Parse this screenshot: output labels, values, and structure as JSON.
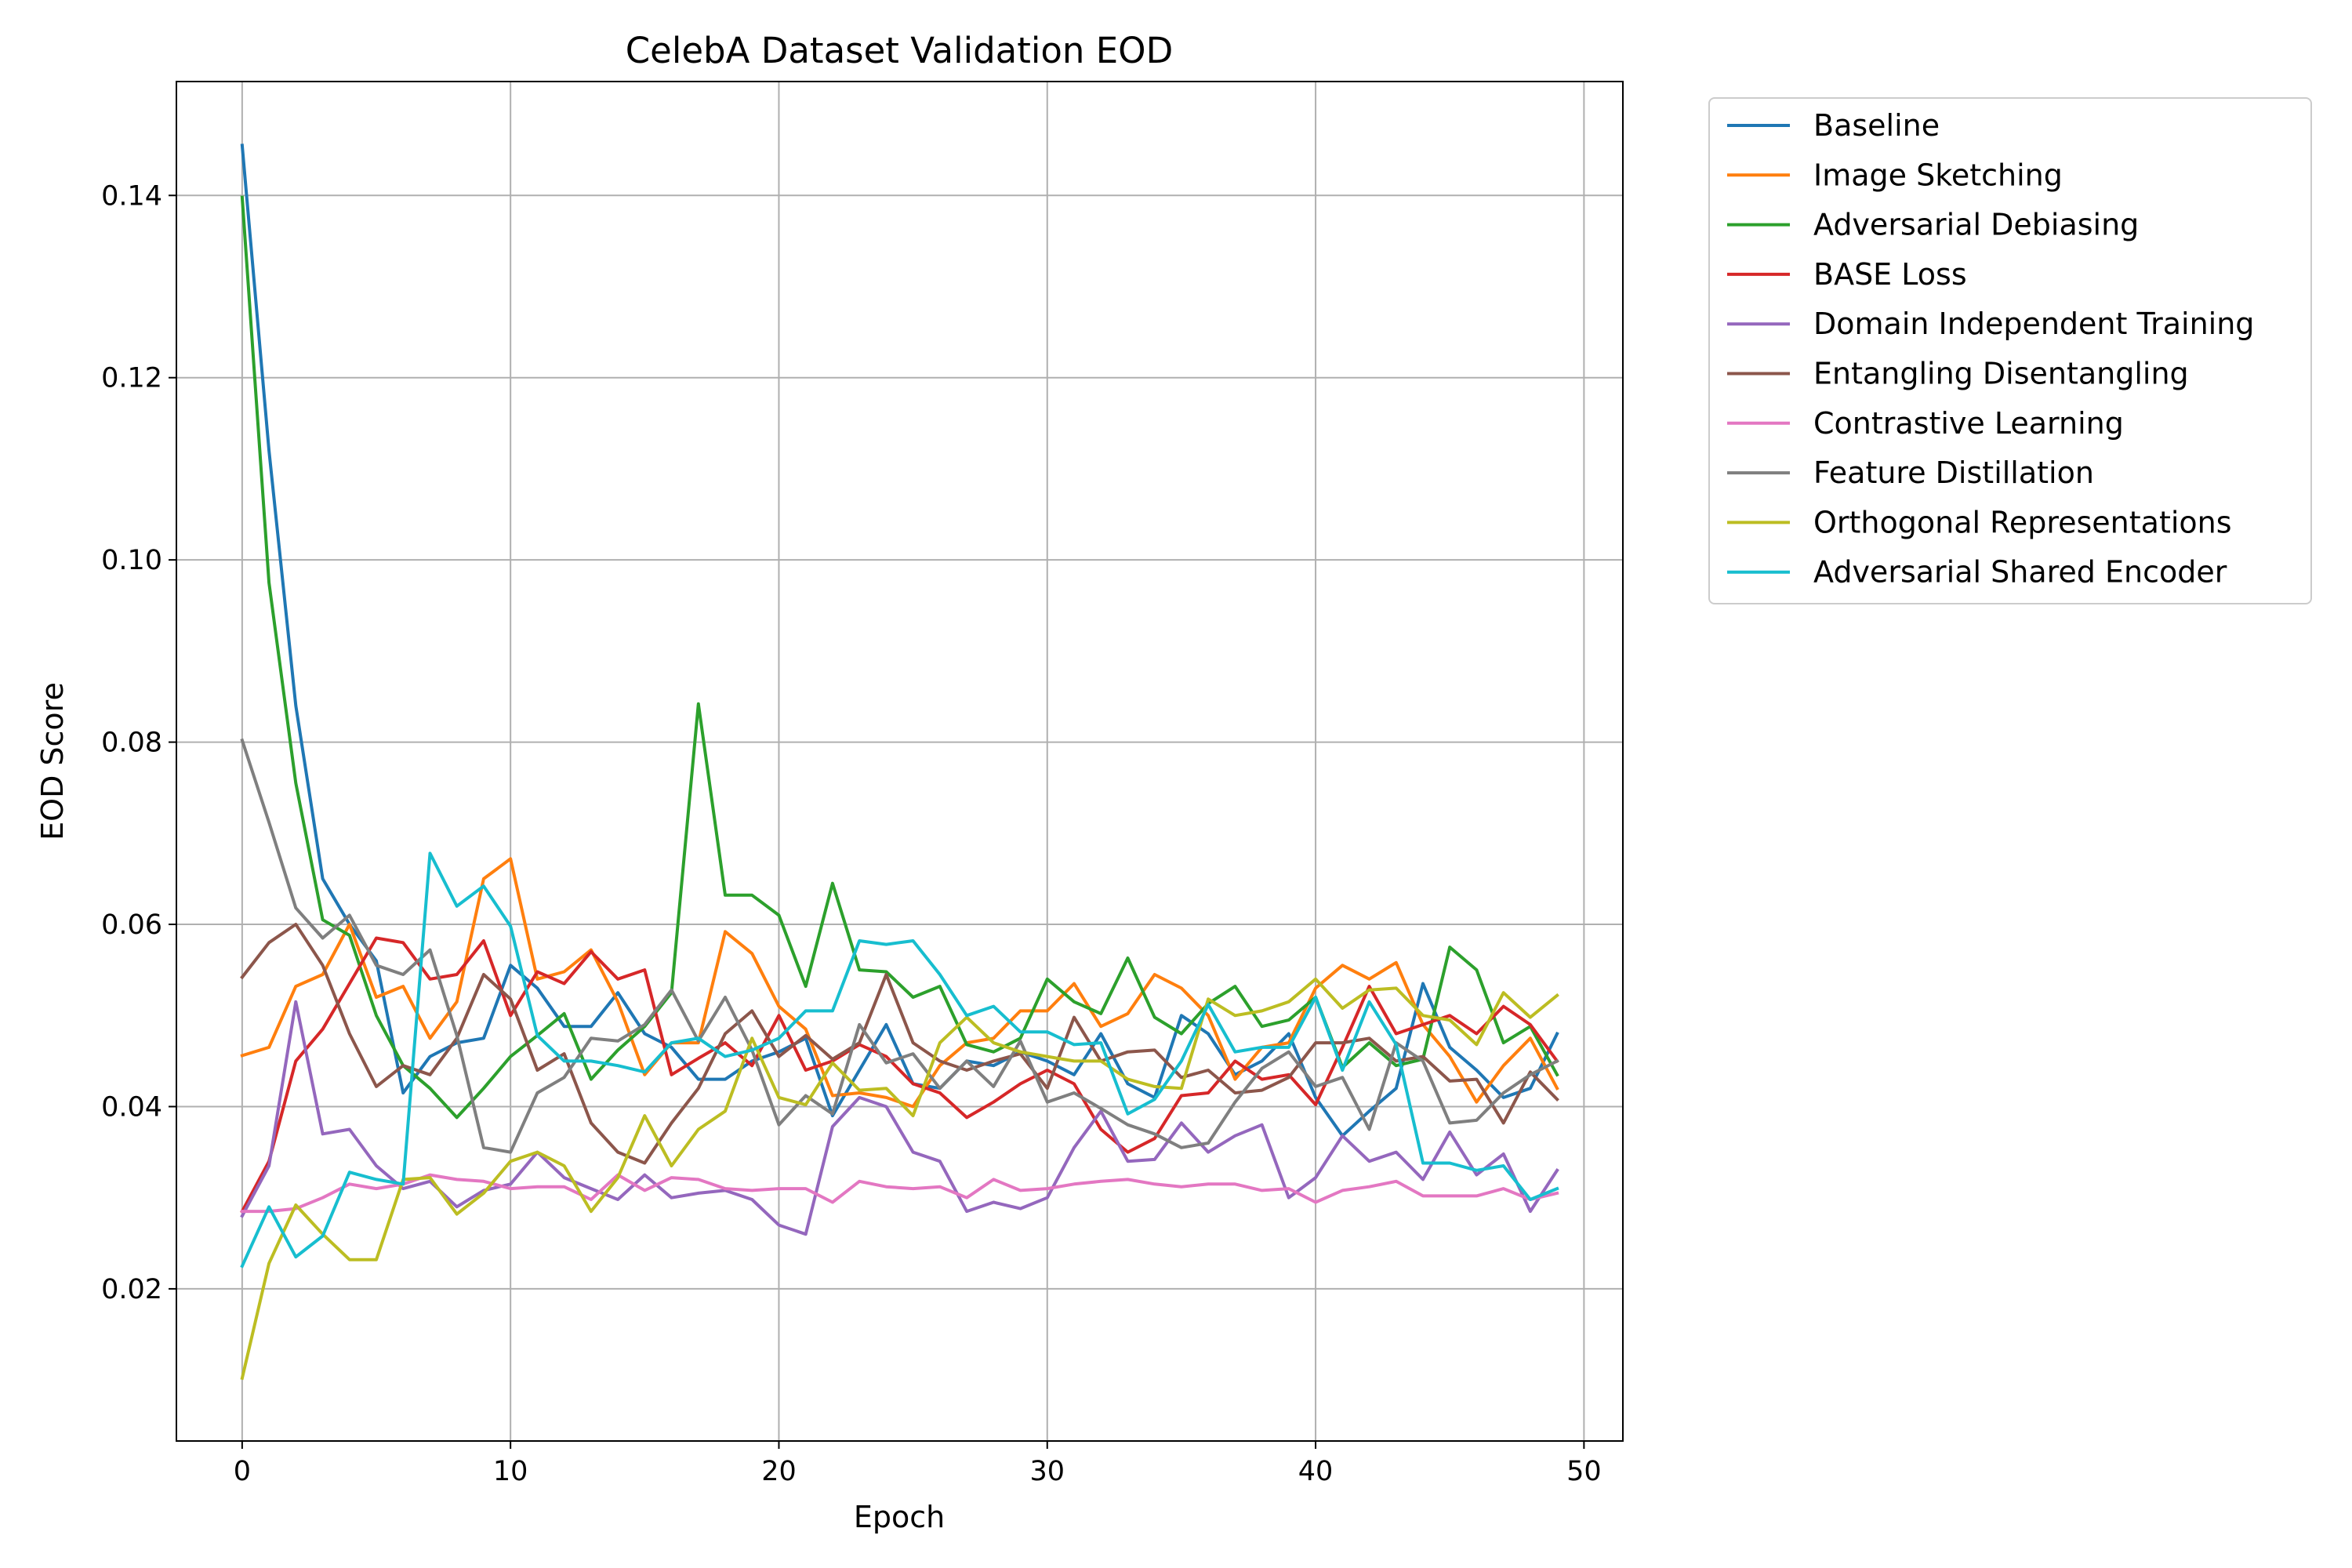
{
  "chart_data": {
    "type": "line",
    "title": "CelebA Dataset Validation EOD",
    "xlabel": "Epoch",
    "ylabel": "EOD Score",
    "xlim": [
      -2.45,
      51.45
    ],
    "ylim": [
      0.0033,
      0.1525
    ],
    "xticks": [
      0,
      10,
      20,
      30,
      40,
      50
    ],
    "xtick_labels": [
      "0",
      "10",
      "20",
      "30",
      "40",
      "50"
    ],
    "yticks": [
      0.02,
      0.04,
      0.06,
      0.08,
      0.1,
      0.12,
      0.14
    ],
    "ytick_labels": [
      "0.02",
      "0.04",
      "0.06",
      "0.08",
      "0.10",
      "0.12",
      "0.14"
    ],
    "grid": true,
    "legend_position": "outside-upper-right",
    "x": [
      0,
      1,
      2,
      3,
      4,
      5,
      6,
      7,
      8,
      9,
      10,
      11,
      12,
      13,
      14,
      15,
      16,
      17,
      18,
      19,
      20,
      21,
      22,
      23,
      24,
      25,
      26,
      27,
      28,
      29,
      30,
      31,
      32,
      33,
      34,
      35,
      36,
      37,
      38,
      39,
      40,
      41,
      42,
      43,
      44,
      45,
      46,
      47,
      48,
      49
    ],
    "series": [
      {
        "name": "Baseline",
        "color": "#1f77b4",
        "values": [
          0.1455,
          0.112,
          0.084,
          0.065,
          0.06,
          0.056,
          0.0415,
          0.0455,
          0.047,
          0.0475,
          0.0555,
          0.053,
          0.0488,
          0.0488,
          0.0525,
          0.048,
          0.0465,
          0.043,
          0.043,
          0.045,
          0.046,
          0.0475,
          0.039,
          0.044,
          0.049,
          0.0425,
          0.042,
          0.045,
          0.0445,
          0.046,
          0.045,
          0.0435,
          0.048,
          0.0425,
          0.041,
          0.05,
          0.048,
          0.0435,
          0.045,
          0.048,
          0.041,
          0.0368,
          0.0395,
          0.042,
          0.0535,
          0.0465,
          0.044,
          0.041,
          0.042,
          0.048
        ]
      },
      {
        "name": "Image Sketching",
        "color": "#ff7f0e",
        "values": [
          0.0456,
          0.0465,
          0.0532,
          0.0545,
          0.06,
          0.052,
          0.0532,
          0.0475,
          0.0515,
          0.065,
          0.0672,
          0.054,
          0.0548,
          0.0572,
          0.0515,
          0.0435,
          0.047,
          0.047,
          0.0592,
          0.0568,
          0.051,
          0.0485,
          0.0412,
          0.0415,
          0.041,
          0.04,
          0.0445,
          0.047,
          0.0475,
          0.0505,
          0.0505,
          0.0535,
          0.0488,
          0.0502,
          0.0545,
          0.053,
          0.05,
          0.043,
          0.0465,
          0.047,
          0.053,
          0.0555,
          0.054,
          0.0558,
          0.049,
          0.0455,
          0.0405,
          0.0445,
          0.0475,
          0.042
        ]
      },
      {
        "name": "Adversarial Debiasing",
        "color": "#2ca02c",
        "values": [
          0.1398,
          0.0975,
          0.0755,
          0.0605,
          0.0588,
          0.05,
          0.0445,
          0.042,
          0.0388,
          0.042,
          0.0455,
          0.0478,
          0.0502,
          0.043,
          0.0462,
          0.0488,
          0.0525,
          0.0842,
          0.0632,
          0.0632,
          0.061,
          0.0532,
          0.0645,
          0.055,
          0.0548,
          0.052,
          0.0532,
          0.0468,
          0.046,
          0.0475,
          0.054,
          0.0515,
          0.0502,
          0.0563,
          0.0498,
          0.048,
          0.0513,
          0.0532,
          0.0488,
          0.0495,
          0.052,
          0.0443,
          0.047,
          0.0445,
          0.0452,
          0.0575,
          0.055,
          0.047,
          0.0488,
          0.0435
        ]
      },
      {
        "name": "BASE Loss",
        "color": "#d62728",
        "values": [
          0.0285,
          0.034,
          0.045,
          0.0485,
          0.0535,
          0.0585,
          0.058,
          0.054,
          0.0545,
          0.0582,
          0.05,
          0.0548,
          0.0535,
          0.057,
          0.054,
          0.055,
          0.0435,
          0.0453,
          0.047,
          0.0445,
          0.05,
          0.044,
          0.045,
          0.0468,
          0.0455,
          0.0425,
          0.0415,
          0.0388,
          0.0405,
          0.0425,
          0.044,
          0.0425,
          0.0375,
          0.035,
          0.0365,
          0.0412,
          0.0415,
          0.045,
          0.043,
          0.0435,
          0.0402,
          0.0465,
          0.0532,
          0.048,
          0.049,
          0.05,
          0.048,
          0.051,
          0.049,
          0.045
        ]
      },
      {
        "name": "Domain Independent Training",
        "color": "#9467bd",
        "values": [
          0.028,
          0.0335,
          0.0515,
          0.037,
          0.0375,
          0.0335,
          0.031,
          0.0318,
          0.029,
          0.0308,
          0.0315,
          0.035,
          0.0322,
          0.031,
          0.0298,
          0.0325,
          0.03,
          0.0305,
          0.0308,
          0.0298,
          0.027,
          0.026,
          0.0378,
          0.041,
          0.04,
          0.035,
          0.034,
          0.0285,
          0.0295,
          0.0288,
          0.03,
          0.0355,
          0.0395,
          0.034,
          0.0342,
          0.0382,
          0.035,
          0.0368,
          0.038,
          0.03,
          0.0322,
          0.0368,
          0.034,
          0.035,
          0.032,
          0.0372,
          0.0325,
          0.0348,
          0.0285,
          0.033
        ]
      },
      {
        "name": "Entangling Disentangling",
        "color": "#8c564b",
        "values": [
          0.0542,
          0.058,
          0.06,
          0.0555,
          0.048,
          0.0422,
          0.0445,
          0.0435,
          0.0475,
          0.0545,
          0.0518,
          0.044,
          0.0458,
          0.0382,
          0.035,
          0.0338,
          0.0382,
          0.042,
          0.048,
          0.0505,
          0.0455,
          0.0478,
          0.0452,
          0.047,
          0.0545,
          0.047,
          0.045,
          0.044,
          0.045,
          0.0458,
          0.042,
          0.0498,
          0.045,
          0.046,
          0.0462,
          0.0432,
          0.044,
          0.0415,
          0.0418,
          0.0432,
          0.047,
          0.047,
          0.0475,
          0.045,
          0.0455,
          0.0428,
          0.043,
          0.0382,
          0.0438,
          0.0408
        ]
      },
      {
        "name": "Contrastive Learning",
        "color": "#e377c2",
        "values": [
          0.0285,
          0.0285,
          0.0288,
          0.03,
          0.0315,
          0.031,
          0.0315,
          0.0325,
          0.032,
          0.0318,
          0.031,
          0.0312,
          0.0312,
          0.0298,
          0.0325,
          0.0308,
          0.0322,
          0.032,
          0.031,
          0.0308,
          0.031,
          0.031,
          0.0295,
          0.0318,
          0.0312,
          0.031,
          0.0312,
          0.03,
          0.032,
          0.0308,
          0.031,
          0.0315,
          0.0318,
          0.032,
          0.0315,
          0.0312,
          0.0315,
          0.0315,
          0.0308,
          0.031,
          0.0295,
          0.0308,
          0.0312,
          0.0318,
          0.0302,
          0.0302,
          0.0302,
          0.031,
          0.0298,
          0.0305
        ]
      },
      {
        "name": "Feature Distillation",
        "color": "#7f7f7f",
        "values": [
          0.0802,
          0.0712,
          0.0618,
          0.0585,
          0.061,
          0.0555,
          0.0545,
          0.0572,
          0.0478,
          0.0355,
          0.035,
          0.0415,
          0.0432,
          0.0475,
          0.0472,
          0.049,
          0.0528,
          0.0472,
          0.052,
          0.0462,
          0.038,
          0.0412,
          0.0392,
          0.049,
          0.0448,
          0.0458,
          0.042,
          0.045,
          0.0422,
          0.0472,
          0.0405,
          0.0415,
          0.0398,
          0.038,
          0.037,
          0.0355,
          0.036,
          0.0405,
          0.0442,
          0.046,
          0.0422,
          0.0432,
          0.0375,
          0.047,
          0.045,
          0.0382,
          0.0385,
          0.0415,
          0.0435,
          0.045
        ]
      },
      {
        "name": "Orthogonal Representations",
        "color": "#bcbd22",
        "values": [
          0.0102,
          0.0228,
          0.0292,
          0.026,
          0.0232,
          0.0232,
          0.032,
          0.0322,
          0.0282,
          0.0305,
          0.034,
          0.035,
          0.0335,
          0.0285,
          0.0322,
          0.039,
          0.0335,
          0.0375,
          0.0395,
          0.0475,
          0.041,
          0.0402,
          0.0448,
          0.0418,
          0.042,
          0.039,
          0.047,
          0.0498,
          0.047,
          0.046,
          0.0455,
          0.045,
          0.045,
          0.043,
          0.0422,
          0.042,
          0.0518,
          0.05,
          0.0505,
          0.0515,
          0.054,
          0.0508,
          0.0528,
          0.053,
          0.05,
          0.0495,
          0.0468,
          0.0525,
          0.0498,
          0.0522
        ]
      },
      {
        "name": "Adversarial Shared Encoder",
        "color": "#17becf",
        "values": [
          0.0225,
          0.029,
          0.0235,
          0.0258,
          0.0328,
          0.032,
          0.0315,
          0.0678,
          0.062,
          0.0642,
          0.0598,
          0.0478,
          0.045,
          0.045,
          0.0445,
          0.0438,
          0.047,
          0.0475,
          0.0455,
          0.0462,
          0.0475,
          0.0505,
          0.0505,
          0.0582,
          0.0578,
          0.0582,
          0.0545,
          0.05,
          0.051,
          0.0482,
          0.0482,
          0.0468,
          0.047,
          0.0392,
          0.0408,
          0.045,
          0.0512,
          0.046,
          0.0465,
          0.0465,
          0.052,
          0.044,
          0.0515,
          0.0468,
          0.0338,
          0.0338,
          0.033,
          0.0335,
          0.0298,
          0.031
        ]
      }
    ]
  }
}
